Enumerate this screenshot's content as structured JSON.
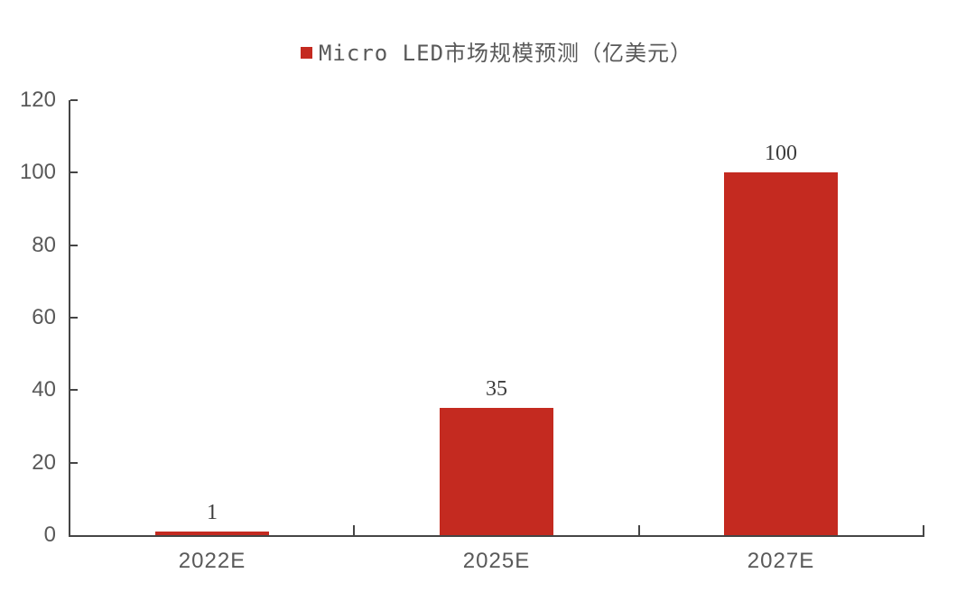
{
  "chart_data": {
    "type": "bar",
    "title": "Micro LED市场规模预测（亿美元）",
    "legend": [
      {
        "label": "Micro LED市场规模预测（亿美元）",
        "marker": "square",
        "color": "#c42a20"
      }
    ],
    "legend_position": "top",
    "categories": [
      "2022E",
      "2025E",
      "2027E"
    ],
    "values": [
      1,
      35,
      100
    ],
    "data_labels": [
      "1",
      "35",
      "100"
    ],
    "xlabel": "",
    "ylabel": "",
    "ylim": [
      0,
      120
    ],
    "yticks": [
      0,
      20,
      40,
      60,
      80,
      100,
      120
    ],
    "grid": false,
    "tick_direction": "inside",
    "colors": {
      "bar": "#c42a20",
      "axis_line": "#454545",
      "axis_text": "#595959",
      "title_text": "#595959",
      "data_label_text": "#3c3c3c",
      "background": "#ffffff"
    }
  }
}
